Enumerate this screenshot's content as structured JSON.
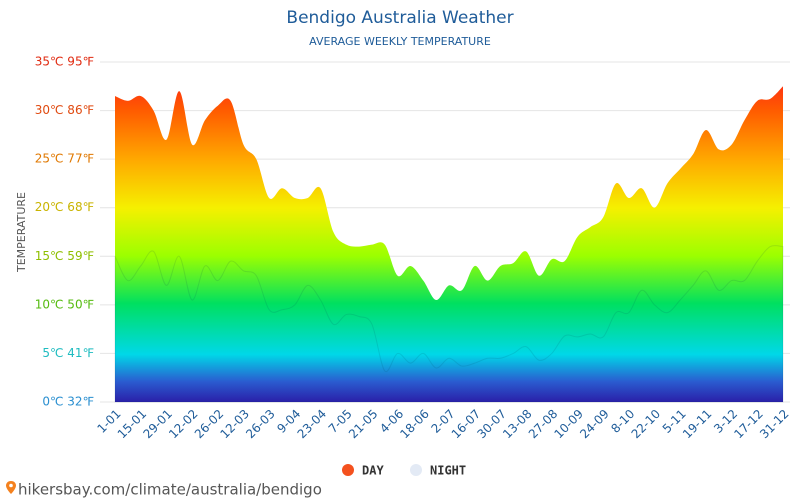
{
  "chart_data": {
    "type": "area",
    "title": "Bendigo Australia Weather",
    "subtitle": "AVERAGE WEEKLY TEMPERATURE",
    "y_label": "TEMPERATURE",
    "footer": "hikersbay.com/climate/australia/bendigo",
    "categories": [
      "1-01",
      null,
      "15-01",
      null,
      "29-01",
      null,
      "12-02",
      null,
      "26-02",
      null,
      "12-03",
      null,
      "26-03",
      null,
      "9-04",
      null,
      "23-04",
      null,
      "7-05",
      null,
      "21-05",
      null,
      "4-06",
      null,
      "18-06",
      null,
      "2-07",
      null,
      "16-07",
      null,
      "30-07",
      null,
      "13-08",
      null,
      "27-08",
      null,
      "10-09",
      null,
      "24-09",
      null,
      "8-10",
      null,
      "22-10",
      null,
      "5-11",
      null,
      "19-11",
      null,
      "3-12",
      null,
      "17-12",
      null,
      "31-12"
    ],
    "series": [
      {
        "name": "DAY",
        "color": "#f4511e",
        "values": [
          31.5,
          31,
          31.5,
          30,
          27,
          32,
          26.5,
          29,
          30.5,
          31,
          26.5,
          25,
          21,
          22,
          21,
          21,
          22,
          17.5,
          16.2,
          16,
          16.2,
          16.2,
          13,
          14,
          12.5,
          10.5,
          12,
          11.5,
          14,
          12.5,
          14,
          14.3,
          15.5,
          13,
          14.7,
          14.5,
          17,
          18,
          19,
          22.5,
          21,
          22,
          20,
          22.5,
          24,
          25.5,
          28,
          26,
          26.5,
          29,
          31,
          31.2,
          32.5
        ]
      },
      {
        "name": "NIGHT",
        "color": "#e3eaf5",
        "values": [
          15,
          12.5,
          14,
          15.5,
          12,
          15,
          10.5,
          14,
          12.5,
          14.5,
          13.5,
          13,
          9.5,
          9.5,
          10,
          12,
          10.5,
          8,
          9,
          8.8,
          8,
          3.2,
          5,
          4,
          5,
          3.5,
          4.5,
          3.7,
          4,
          4.5,
          4.5,
          5,
          5.7,
          4.3,
          5,
          6.8,
          6.7,
          7,
          6.7,
          9.2,
          9.2,
          11.5,
          10,
          9.2,
          10.5,
          12,
          13.5,
          11.5,
          12.5,
          12.5,
          14.5,
          16,
          16
        ]
      }
    ],
    "ylim": [
      0,
      35
    ],
    "yticks": [
      {
        "value": 0,
        "label": "0℃ 32℉"
      },
      {
        "value": 5,
        "label": "5℃ 41℉"
      },
      {
        "value": 10,
        "label": "10℃ 50℉"
      },
      {
        "value": 15,
        "label": "15℃ 59℉"
      },
      {
        "value": 20,
        "label": "20℃ 68℉"
      },
      {
        "value": 25,
        "label": "25℃ 77℉"
      },
      {
        "value": 30,
        "label": "30℃ 86℉"
      },
      {
        "value": 35,
        "label": "35℃ 95℉"
      }
    ],
    "grid": true
  }
}
